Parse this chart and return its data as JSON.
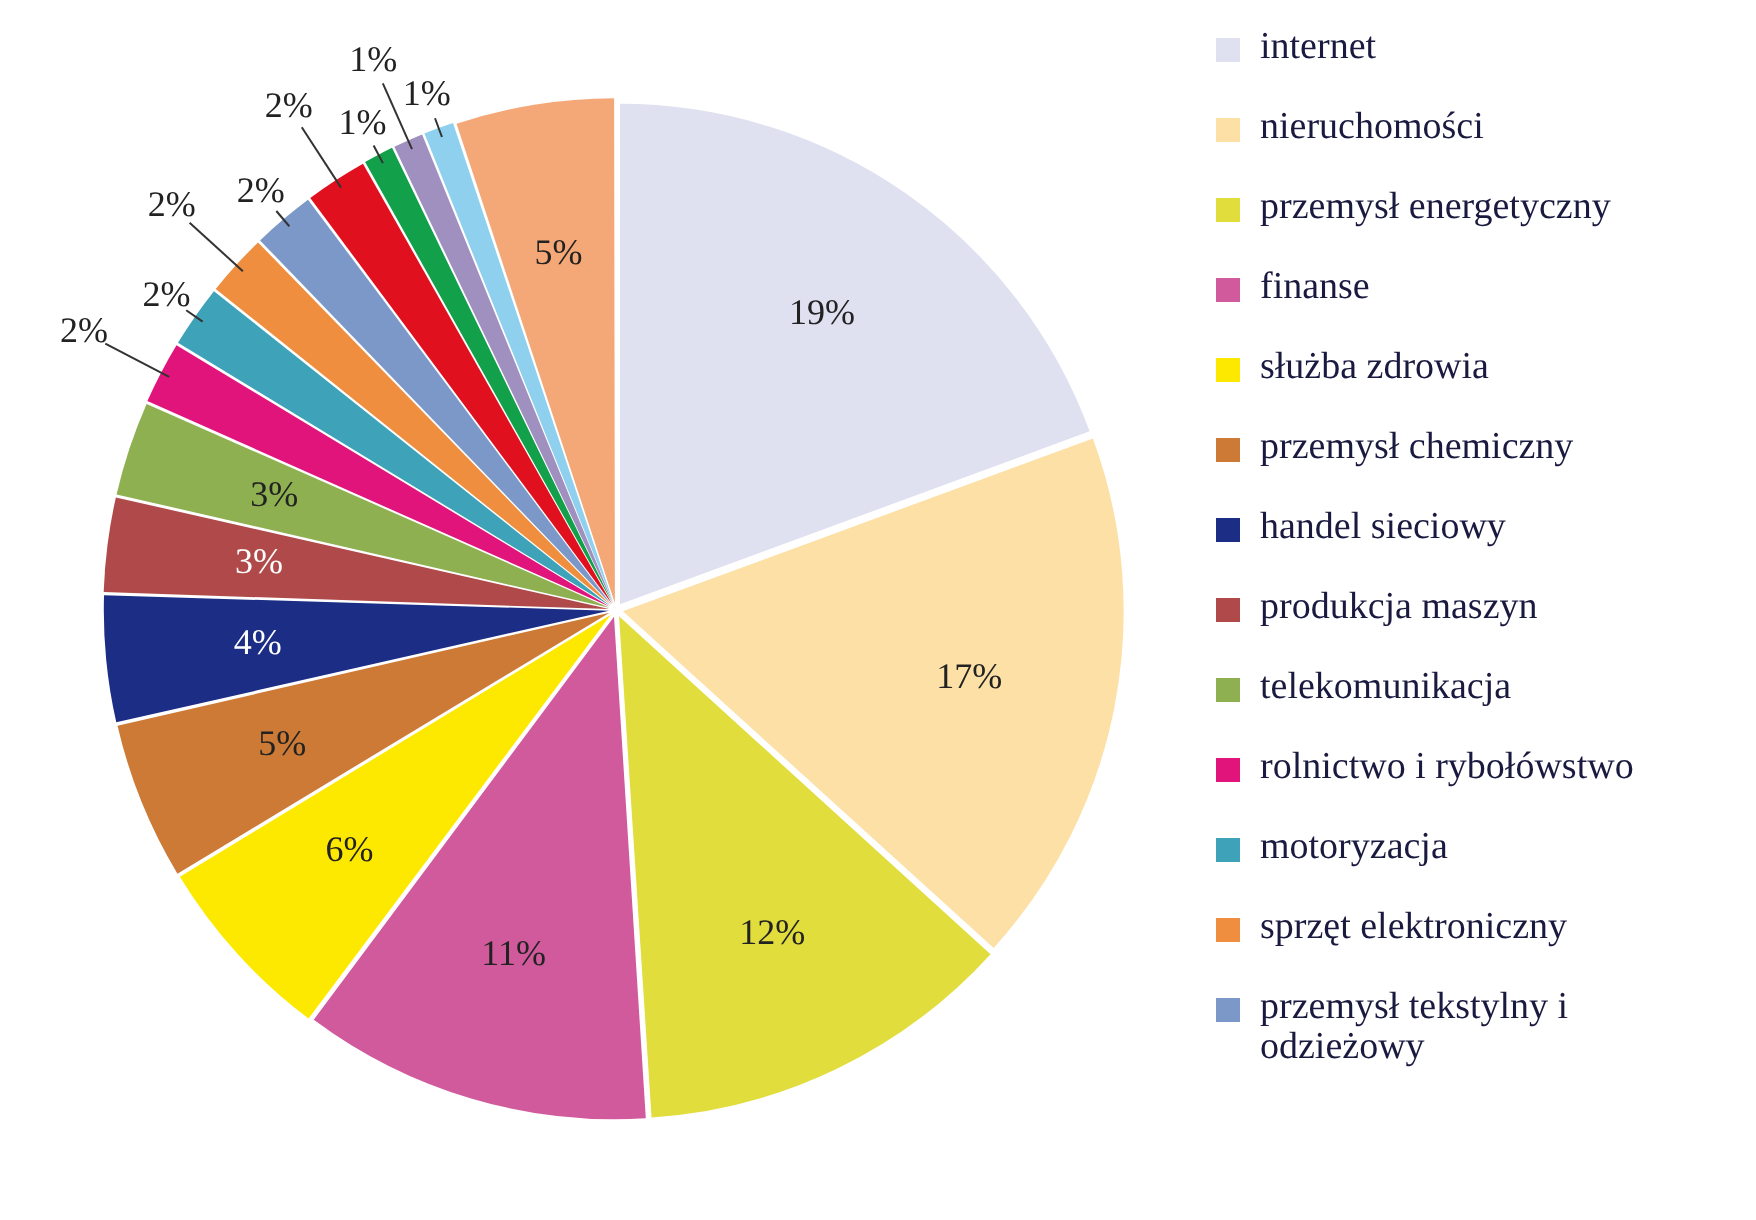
{
  "chart_data": {
    "type": "pie",
    "categories": [
      "internet",
      "nieruchomości",
      "przemysł energetyczny",
      "finanse",
      "służba zdrowia",
      "przemysł chemiczny",
      "handel sieciowy",
      "produkcja maszyn",
      "telekomunikacja",
      "rolnictwo i rybołówstwo",
      "motoryzacja",
      "sprzęt elektroniczny",
      "przemysł tekstylny i odzieżowy",
      null,
      null,
      null,
      null,
      null
    ],
    "values": [
      19,
      17,
      12,
      11,
      6,
      5,
      4,
      3,
      3,
      2,
      2,
      2,
      2,
      2,
      1,
      1,
      1,
      5
    ],
    "value_labels": [
      "19%",
      "17%",
      "12%",
      "11%",
      "6%",
      "5%",
      "4%",
      "3%",
      "3%",
      "2%",
      "2%",
      "2%",
      "2%",
      "2%",
      "1%",
      "1%",
      "1%",
      "5%"
    ],
    "colors": [
      "#e0e1f0",
      "#fde0a6",
      "#e0dd3c",
      "#d15a9c",
      "#fde900",
      "#cc7a35",
      "#1c2d85",
      "#b04a4a",
      "#8fb050",
      "#e0147a",
      "#3ea3b8",
      "#ee8e3e",
      "#7b98c8",
      "#e0101e",
      "#12a04a",
      "#a090c0",
      "#8ed0ee",
      "#f4a878"
    ],
    "legend": "right"
  }
}
